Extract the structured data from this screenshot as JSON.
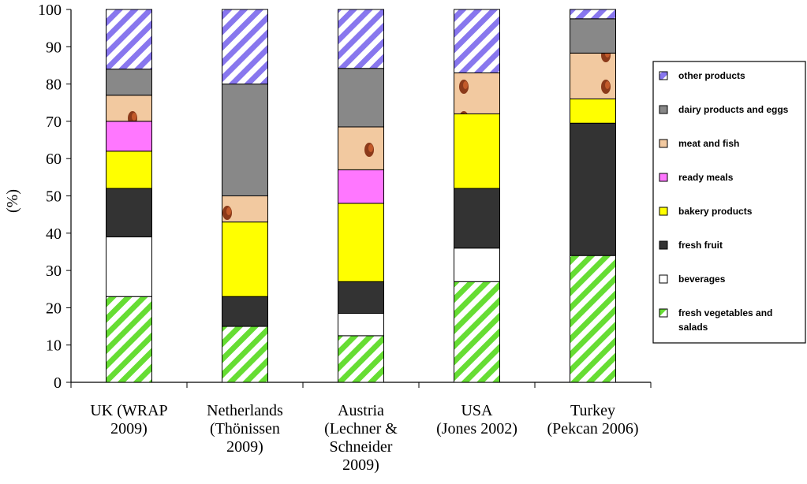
{
  "chart_data": {
    "type": "bar",
    "stacked": true,
    "ylabel": "(%)",
    "ylim": [
      0,
      100
    ],
    "ytick_step": 10,
    "grid": false,
    "legend_position": "right",
    "categories": [
      [
        "UK (WRAP",
        "2009)"
      ],
      [
        "Netherlands",
        "(Thönissen",
        "2009)"
      ],
      [
        "Austria",
        "(Lechner &",
        "Schneider",
        "2009)"
      ],
      [
        "USA",
        "(Jones 2002)"
      ],
      [
        "Turkey",
        "(Pekcan 2006)"
      ]
    ],
    "series": [
      {
        "name": "fresh vegetables and salads",
        "legend_lines": [
          "fresh vegetables and",
          "salads"
        ],
        "color": "#66dd33",
        "pattern": "green-stripes",
        "values": [
          23,
          15,
          12.5,
          27,
          34
        ]
      },
      {
        "name": "beverages",
        "legend_lines": [
          "beverages"
        ],
        "color": "#ffffff",
        "pattern": "solid",
        "values": [
          16,
          0,
          6,
          9,
          0
        ]
      },
      {
        "name": "fresh fruit",
        "legend_lines": [
          "fresh fruit"
        ],
        "color": "#333333",
        "pattern": "solid",
        "values": [
          13,
          8,
          8.5,
          16,
          35.5
        ]
      },
      {
        "name": "bakery products",
        "legend_lines": [
          "bakery products"
        ],
        "color": "#ffff00",
        "pattern": "solid",
        "values": [
          10,
          20,
          21,
          20,
          6.5
        ]
      },
      {
        "name": "ready meals",
        "legend_lines": [
          "ready meals"
        ],
        "color": "#ff77ff",
        "pattern": "solid",
        "values": [
          8,
          0,
          9,
          0,
          0
        ]
      },
      {
        "name": "meat and fish",
        "legend_lines": [
          "meat and fish"
        ],
        "color": "#f2c9a0",
        "pattern": "meat-texture",
        "values": [
          7,
          7,
          11.5,
          11,
          12.3
        ]
      },
      {
        "name": "dairy products and eggs",
        "legend_lines": [
          "dairy products and eggs"
        ],
        "color": "#888888",
        "pattern": "solid",
        "values": [
          7,
          30,
          15.7,
          0,
          9.2
        ]
      },
      {
        "name": "other products",
        "legend_lines": [
          "other products"
        ],
        "color": "#8877ee",
        "pattern": "purple-stripes",
        "values": [
          16,
          20,
          15.8,
          17,
          2.5
        ]
      }
    ]
  }
}
